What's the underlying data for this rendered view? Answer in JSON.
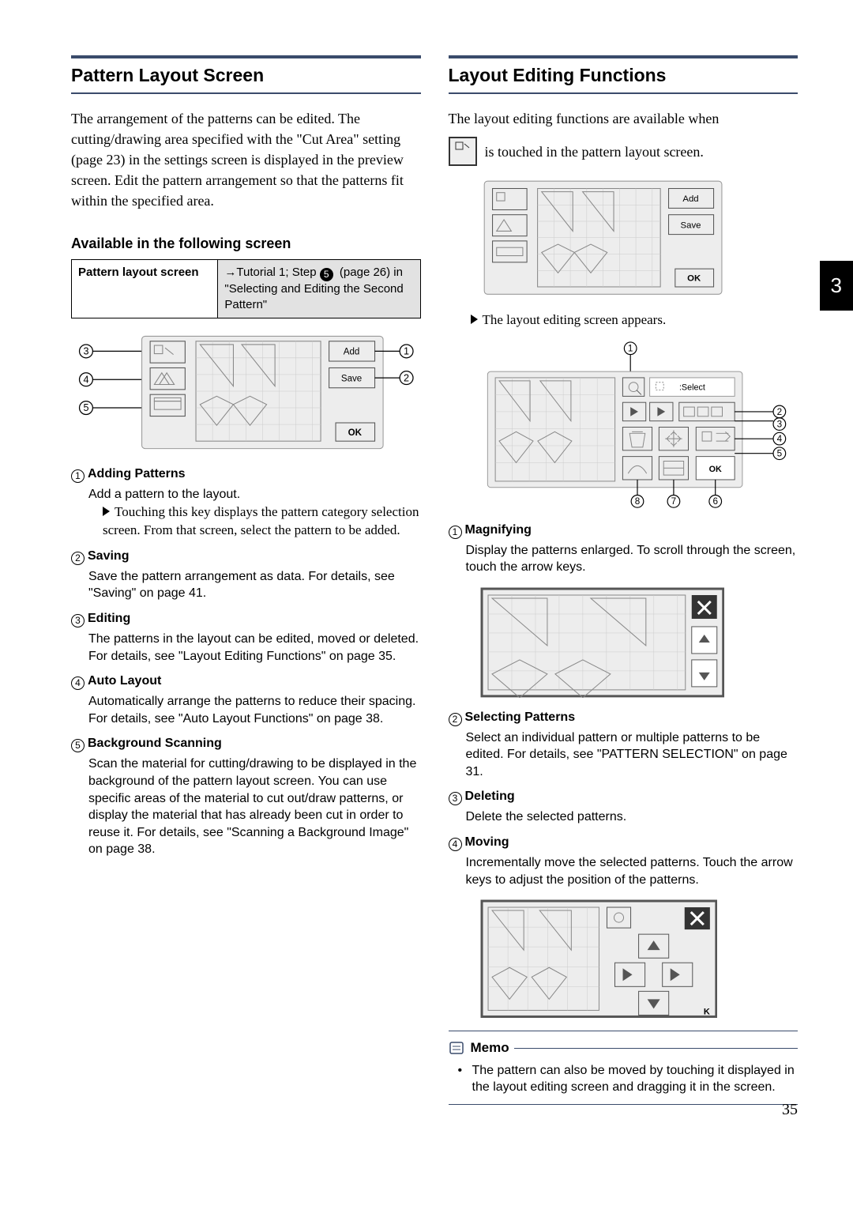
{
  "tab": "3",
  "pagenum": "35",
  "left": {
    "title": "Pattern Layout Screen",
    "intro": "The arrangement of the patterns can be edited. The cutting/drawing area specified with the \"Cut Area\" setting (page 23) in the settings screen is displayed in the preview screen. Edit the pattern arrangement so that the patterns fit within the specified area.",
    "avail_heading": "Available in the following screen",
    "table": {
      "r1c1": "Pattern layout screen",
      "r1c2a": "→Tutorial 1; Step ",
      "r1c2a_num": "5",
      "r1c2a_tail": " (page 26) in \"Selecting and Editing the Second Pattern\""
    },
    "fig1": {
      "add": "Add",
      "save": "Save",
      "ok": "OK"
    },
    "items": [
      {
        "n": "1",
        "t": "Adding Patterns",
        "d": "Add a pattern to the layout.",
        "sub": "Touching this key displays the pattern category selection screen. From that screen, select the pattern to be added."
      },
      {
        "n": "2",
        "t": "Saving",
        "d": "Save the pattern arrangement as data. For details, see \"Saving\" on page 41."
      },
      {
        "n": "3",
        "t": "Editing",
        "d": "The patterns in the layout can be edited, moved or deleted. For details, see \"Layout Editing Functions\" on page 35."
      },
      {
        "n": "4",
        "t": "Auto Layout",
        "d": "Automatically arrange the patterns to reduce their spacing. For details, see \"Auto Layout Functions\" on page 38."
      },
      {
        "n": "5",
        "t": "Background Scanning",
        "d": "Scan the material for cutting/drawing to be displayed in the background of the pattern layout screen. You can use specific areas of the material to cut out/draw patterns, or display the material that has already been cut in order to reuse it. For details, see \"Scanning a Background Image\" on page 38."
      }
    ]
  },
  "right": {
    "title": "Layout Editing Functions",
    "intro_a": "The layout editing functions are available when",
    "intro_b": "is touched in the pattern layout screen.",
    "figcap": "The layout editing screen appears.",
    "fig1": {
      "add": "Add",
      "save": "Save",
      "ok": "OK"
    },
    "fig2": {
      "select": ":Select",
      "ok": "OK"
    },
    "items": [
      {
        "n": "1",
        "t": "Magnifying",
        "d": "Display the patterns enlarged. To scroll through the screen, touch the arrow keys."
      },
      {
        "n": "2",
        "t": "Selecting Patterns",
        "d": "Select an individual pattern or multiple patterns to be edited. For details, see \"PATTERN SELECTION\" on page 31."
      },
      {
        "n": "3",
        "t": "Deleting",
        "d": "Delete the selected patterns."
      },
      {
        "n": "4",
        "t": "Moving",
        "d": "Incrementally move the selected patterns. Touch the arrow keys to adjust the position of the patterns."
      }
    ],
    "memo_head": "Memo",
    "memo_body": "The pattern can also be moved by touching it displayed in the layout editing screen and dragging it in the screen."
  }
}
